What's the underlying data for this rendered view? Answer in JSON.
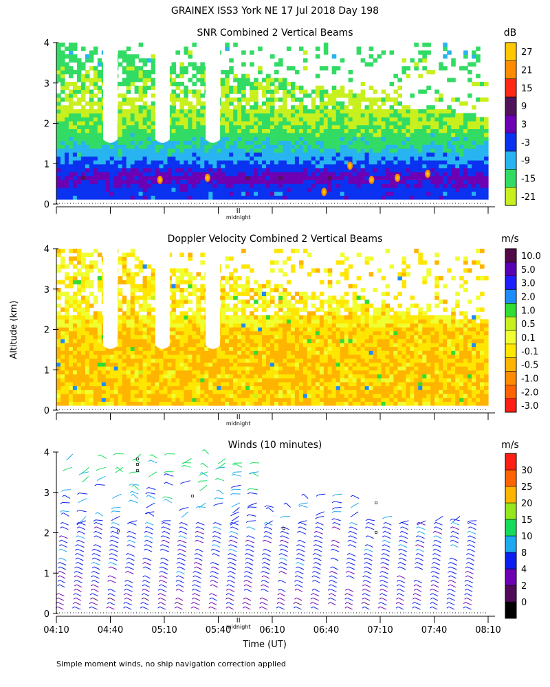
{
  "header": {
    "title": "GRAINEX ISS3 York NE  17 Jul 2018 Day 198",
    "shared_ylabel": "Altitude (km)",
    "xlabel": "Time (UT)",
    "midnight_label": "midnight",
    "footnote": "Simple moment winds, no ship navigation correction applied"
  },
  "chart_data": [
    {
      "type": "heatmap",
      "title": "SNR Combined 2 Vertical Beams",
      "units": "dB",
      "xlabel": "Time (UT)",
      "ylabel": "Altitude (km)",
      "ylim": [
        0,
        4
      ],
      "y_ticks": [
        "0",
        "1",
        "2",
        "3",
        "4"
      ],
      "colorbar_labels": [
        "-21",
        "-15",
        "-9",
        "-3",
        "3",
        "9",
        "15",
        "21",
        "27"
      ],
      "colorbar_colors": [
        "#c8f01e",
        "#32dc64",
        "#28b4f0",
        "#0a32f0",
        "#6e00b4",
        "#50145a",
        "#ff2814",
        "#ff8c00",
        "#ffc800"
      ],
      "data_gaps_utc": [
        [
          "04:36",
          "04:44"
        ],
        [
          "05:05",
          "05:13"
        ],
        [
          "05:33",
          "05:41"
        ]
      ],
      "profile": [
        {
          "alt_km": 0.3,
          "snr_db": -3
        },
        {
          "alt_km": 0.6,
          "snr_db": 3
        },
        {
          "alt_km": 1.0,
          "snr_db": -6
        },
        {
          "alt_km": 1.4,
          "snr_db": -12
        },
        {
          "alt_km": 1.9,
          "snr_db": -18
        },
        {
          "alt_km": 2.5,
          "snr_db": -20
        },
        {
          "alt_km": 3.5,
          "snr_db": -15
        }
      ]
    },
    {
      "type": "heatmap",
      "title": "Doppler Velocity Combined 2 Vertical Beams",
      "units": "m/s",
      "ylim": [
        0,
        4
      ],
      "y_ticks": [
        "0",
        "1",
        "2",
        "3",
        "4"
      ],
      "colorbar_labels": [
        "-3.0",
        "-2.0",
        "-1.0",
        "-0.5",
        "-0.1",
        "0.1",
        "0.5",
        "1.0",
        "2.0",
        "3.0",
        "5.0",
        "10.0"
      ],
      "colorbar_colors": [
        "#ff1e14",
        "#ff6400",
        "#ff8c00",
        "#ffb400",
        "#ffe600",
        "#f0ff32",
        "#c8f01e",
        "#32dc32",
        "#1e8cff",
        "#1e1eff",
        "#5a00b4",
        "#500a46"
      ],
      "profile": [
        {
          "alt_km": 0.5,
          "velocity_ms": -0.3
        },
        {
          "alt_km": 1.0,
          "velocity_ms": -0.2
        },
        {
          "alt_km": 1.5,
          "velocity_ms": -0.3
        },
        {
          "alt_km": 2.1,
          "velocity_ms": -0.1
        },
        {
          "alt_km": 3.0,
          "velocity_ms": 0.1
        }
      ]
    },
    {
      "type": "wind-barbs",
      "title": "Winds (10 minutes)",
      "units": "m/s",
      "ylim": [
        0,
        4
      ],
      "y_ticks": [
        "0",
        "1",
        "2",
        "3",
        "4"
      ],
      "colorbar_labels": [
        "0",
        "2",
        "4",
        "8",
        "10",
        "15",
        "20",
        "25",
        "30"
      ],
      "colorbar_colors": [
        "#000000",
        "#500a5a",
        "#6e00b4",
        "#0a1ef0",
        "#1eaaf0",
        "#14dc5a",
        "#96e61e",
        "#ffb400",
        "#ff6400",
        "#ff1e14"
      ],
      "x_ticks": [
        "04:10",
        "04:40",
        "05:10",
        "05:40",
        "06:10",
        "06:40",
        "07:10",
        "07:40",
        "08:10"
      ],
      "profile": [
        {
          "alt_km": 0.3,
          "speed_ms": 4,
          "direction": "S"
        },
        {
          "alt_km": 1.0,
          "speed_ms": 6,
          "direction": "SSW"
        },
        {
          "alt_km": 2.0,
          "speed_ms": 6,
          "direction": "SW"
        },
        {
          "alt_km": 3.0,
          "speed_ms": 8,
          "direction": "WSW"
        },
        {
          "alt_km": 3.8,
          "speed_ms": 12,
          "direction": "W"
        }
      ]
    }
  ]
}
